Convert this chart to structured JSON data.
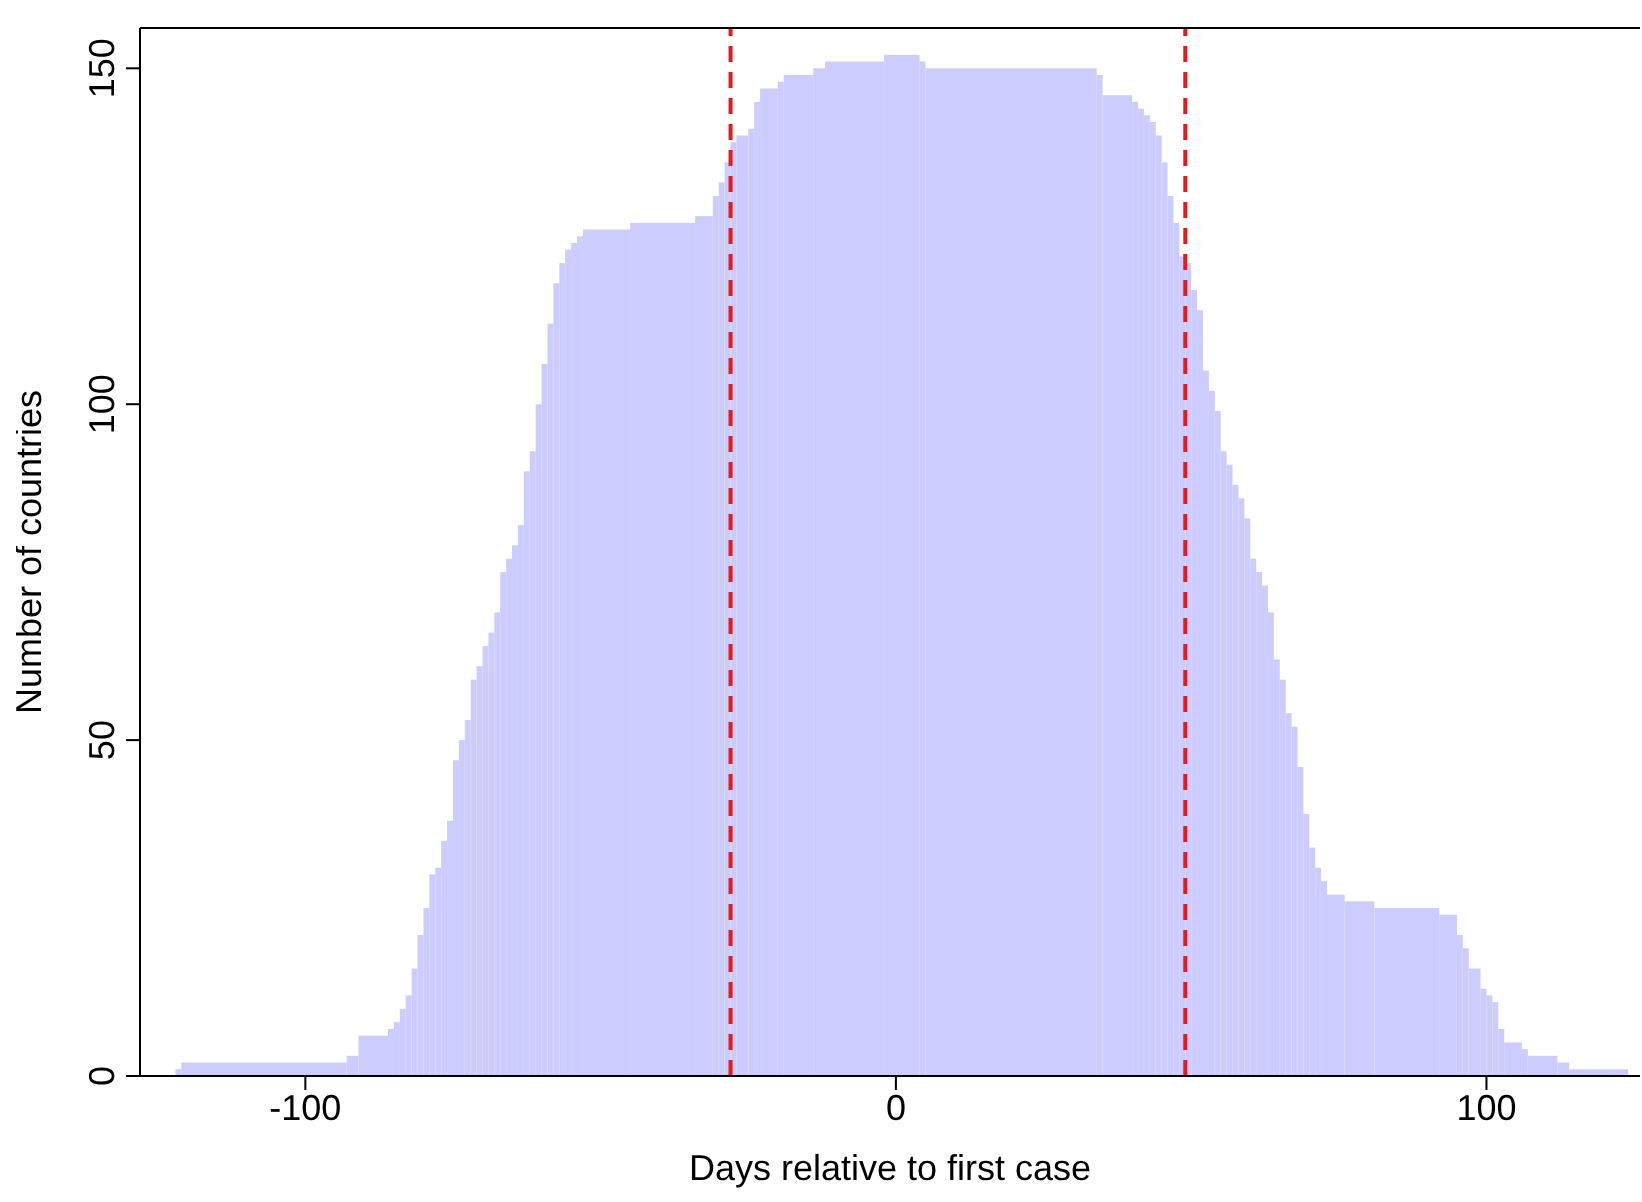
{
  "chart_data": {
    "type": "histogram",
    "xlabel": "Days relative to first case",
    "ylabel": "Number of countries",
    "color": "#ccccff",
    "bins": [
      -122,
      -121,
      -93,
      -91,
      -86,
      -85,
      -84,
      -83,
      -82,
      -81,
      -80,
      -79,
      -78,
      -77,
      -76,
      -75,
      -74,
      -73,
      -72,
      -71,
      -70,
      -69,
      -68,
      -67,
      -66,
      -65,
      -64,
      -63,
      -62,
      -61,
      -60,
      -59,
      -58,
      -57,
      -56,
      -55,
      -54,
      -53,
      -45,
      -34,
      -31,
      -30,
      -29,
      -28,
      -27,
      -25,
      -24,
      -23,
      -20,
      -19,
      -14,
      -12,
      -2,
      4,
      5,
      34,
      35,
      40,
      41,
      42,
      43,
      44,
      45,
      46,
      47,
      48,
      49,
      50,
      51,
      52,
      53,
      54,
      55,
      56,
      57,
      58,
      59,
      60,
      61,
      62,
      63,
      64,
      65,
      66,
      67,
      68,
      69,
      70,
      71,
      72,
      73,
      76,
      81,
      92,
      95,
      96,
      97,
      99,
      100,
      101,
      102,
      103,
      106,
      107,
      112,
      114,
      124
    ],
    "values": [
      1,
      2,
      3,
      6,
      7,
      8,
      10,
      12,
      16,
      21,
      25,
      30,
      31,
      35,
      38,
      47,
      50,
      53,
      59,
      61,
      64,
      66,
      69,
      75,
      77,
      79,
      82,
      90,
      93,
      100,
      106,
      112,
      118,
      121,
      123,
      124,
      125,
      126,
      127,
      128,
      131,
      133,
      136,
      139,
      140,
      141,
      145,
      147,
      148,
      149,
      150,
      151,
      152,
      151,
      150,
      149,
      146,
      145,
      144,
      143,
      142,
      140,
      136,
      131,
      127,
      122,
      121,
      117,
      114,
      105,
      102,
      99,
      93,
      91,
      88,
      86,
      83,
      77,
      75,
      73,
      69,
      62,
      59,
      54,
      52,
      46,
      39,
      34,
      31,
      29,
      27,
      26,
      25,
      24,
      21,
      19,
      16,
      13,
      12,
      11,
      7,
      5,
      4,
      3,
      2,
      1
    ],
    "xlim": [
      -128,
      126
    ],
    "ylim": [
      0,
      156
    ],
    "xticks": [
      -100,
      0,
      100
    ],
    "yticks": [
      0,
      50,
      100,
      150
    ],
    "ref_lines": [
      {
        "axis": "x",
        "value": -28,
        "color": "#e8191b",
        "line_style": "dashed"
      },
      {
        "axis": "x",
        "value": 49,
        "color": "#e8191b",
        "line_style": "dashed"
      }
    ]
  }
}
